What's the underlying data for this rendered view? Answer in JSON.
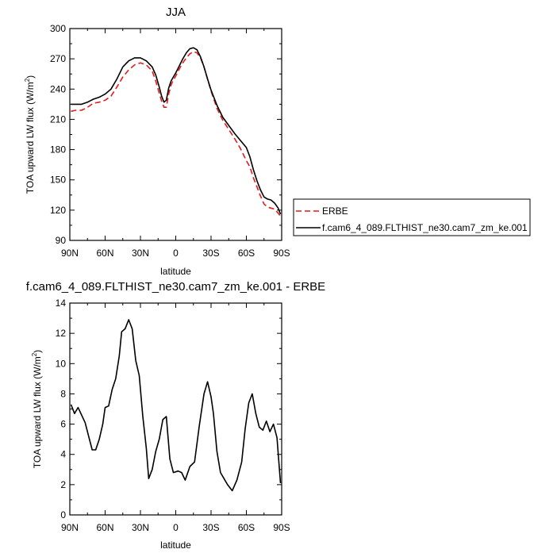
{
  "chart_data": [
    {
      "type": "line",
      "title": "JJA",
      "xlabel": "latitude",
      "ylabel": "TOA upward LW flux (W/m",
      "ylabel_sup": "2",
      "ylabel_close": ")",
      "xlim": [
        90,
        -90
      ],
      "ylim": [
        90,
        300
      ],
      "x_ticks": [
        90,
        60,
        30,
        0,
        -30,
        -60,
        -90
      ],
      "x_tick_labels": [
        "90N",
        "60N",
        "30N",
        "0",
        "30S",
        "60S",
        "90S"
      ],
      "y_ticks": [
        90,
        120,
        150,
        180,
        210,
        240,
        270,
        300
      ],
      "y_tick_labels": [
        "90",
        "120",
        "150",
        "180",
        "210",
        "240",
        "270",
        "300"
      ],
      "legend_position": "right",
      "series": [
        {
          "name": "ERBE",
          "color": "#e41a1c",
          "dash": true,
          "x": [
            89,
            85,
            80,
            75,
            70,
            65,
            60,
            55,
            50,
            45,
            40,
            35,
            30,
            25,
            20,
            17,
            14,
            12,
            10,
            8,
            6,
            4,
            2,
            0,
            -3,
            -6,
            -9,
            -12,
            -15,
            -18,
            -21,
            -24,
            -27,
            -30,
            -35,
            -40,
            -45,
            -50,
            -55,
            -60,
            -63,
            -66,
            -69,
            -72,
            -75,
            -78,
            -81,
            -84,
            -87,
            -89
          ],
          "y": [
            218,
            219,
            219,
            222,
            226,
            227,
            229,
            233,
            242,
            252,
            259,
            264,
            266,
            264,
            258,
            248,
            236,
            228,
            222,
            222,
            235,
            244,
            249,
            253,
            260,
            266,
            271,
            275,
            277,
            276,
            271,
            262,
            250,
            238,
            221,
            209,
            200,
            191,
            181,
            169,
            163,
            152,
            143,
            134,
            126,
            123,
            122,
            121,
            117,
            114
          ]
        },
        {
          "name": "f.cam6_4_089.FLTHIST_ne30.cam7_zm_ke.001",
          "color": "#000000",
          "dash": false,
          "x": [
            89,
            85,
            80,
            75,
            70,
            65,
            60,
            55,
            50,
            45,
            40,
            35,
            30,
            25,
            20,
            17,
            14,
            12,
            10,
            8,
            6,
            4,
            2,
            0,
            -3,
            -6,
            -9,
            -12,
            -15,
            -18,
            -21,
            -24,
            -27,
            -30,
            -35,
            -40,
            -45,
            -50,
            -55,
            -60,
            -63,
            -66,
            -69,
            -72,
            -75,
            -78,
            -81,
            -84,
            -87,
            -89
          ],
          "y": [
            225,
            225,
            225,
            227,
            230,
            232,
            235,
            240,
            250,
            262,
            268,
            271,
            271,
            268,
            262,
            254,
            242,
            233,
            227,
            229,
            241,
            248,
            252,
            256,
            263,
            270,
            276,
            280,
            281,
            279,
            272,
            262,
            250,
            239,
            224,
            212,
            204,
            196,
            189,
            182,
            173,
            160,
            149,
            140,
            133,
            131,
            130,
            127,
            122,
            116
          ]
        }
      ]
    },
    {
      "type": "line",
      "title": "f.cam6_4_089.FLTHIST_ne30.cam7_zm_ke.001 - ERBE",
      "xlabel": "latitude",
      "ylabel": "TOA upward LW flux (W/m",
      "ylabel_sup": "2",
      "ylabel_close": ")",
      "xlim": [
        90,
        -90
      ],
      "ylim": [
        0,
        14
      ],
      "x_ticks": [
        90,
        60,
        30,
        0,
        -30,
        -60,
        -90
      ],
      "x_tick_labels": [
        "90N",
        "60N",
        "30N",
        "0",
        "30S",
        "60S",
        "90S"
      ],
      "y_ticks": [
        0,
        2,
        4,
        6,
        8,
        10,
        12,
        14
      ],
      "y_tick_labels": [
        "0",
        "2",
        "4",
        "6",
        "8",
        "10",
        "12",
        "14"
      ],
      "series": [
        {
          "color": "#000000",
          "dash": false,
          "x": [
            89,
            86,
            83,
            80,
            77,
            74,
            71,
            68,
            65,
            62,
            60,
            57,
            54,
            51,
            48,
            46,
            43,
            40,
            37,
            34,
            31,
            28,
            25,
            23,
            20,
            17,
            14,
            11,
            8,
            5,
            2,
            -2,
            -5,
            -8,
            -12,
            -16,
            -20,
            -24,
            -27,
            -30,
            -32,
            -35,
            -38,
            -41,
            -44,
            -48,
            -52,
            -56,
            -59,
            -62,
            -65,
            -68,
            -71,
            -74,
            -77,
            -80,
            -83,
            -86,
            -89
          ],
          "y": [
            7.3,
            6.7,
            7.1,
            6.6,
            6.1,
            5.2,
            4.3,
            4.3,
            5.0,
            6.0,
            7.1,
            7.2,
            8.3,
            9.0,
            10.5,
            12.1,
            12.3,
            12.9,
            12.3,
            10.2,
            9.2,
            6.5,
            4.4,
            2.4,
            3.0,
            4.2,
            5.0,
            6.3,
            6.5,
            3.7,
            2.8,
            2.9,
            2.8,
            2.3,
            3.2,
            3.5,
            5.9,
            8.0,
            8.8,
            7.8,
            6.7,
            4.2,
            2.8,
            2.4,
            2.0,
            1.6,
            2.3,
            3.5,
            5.7,
            7.4,
            8.0,
            6.7,
            5.8,
            5.6,
            6.2,
            5.5,
            6.0,
            5.1,
            2.1
          ]
        }
      ]
    }
  ]
}
